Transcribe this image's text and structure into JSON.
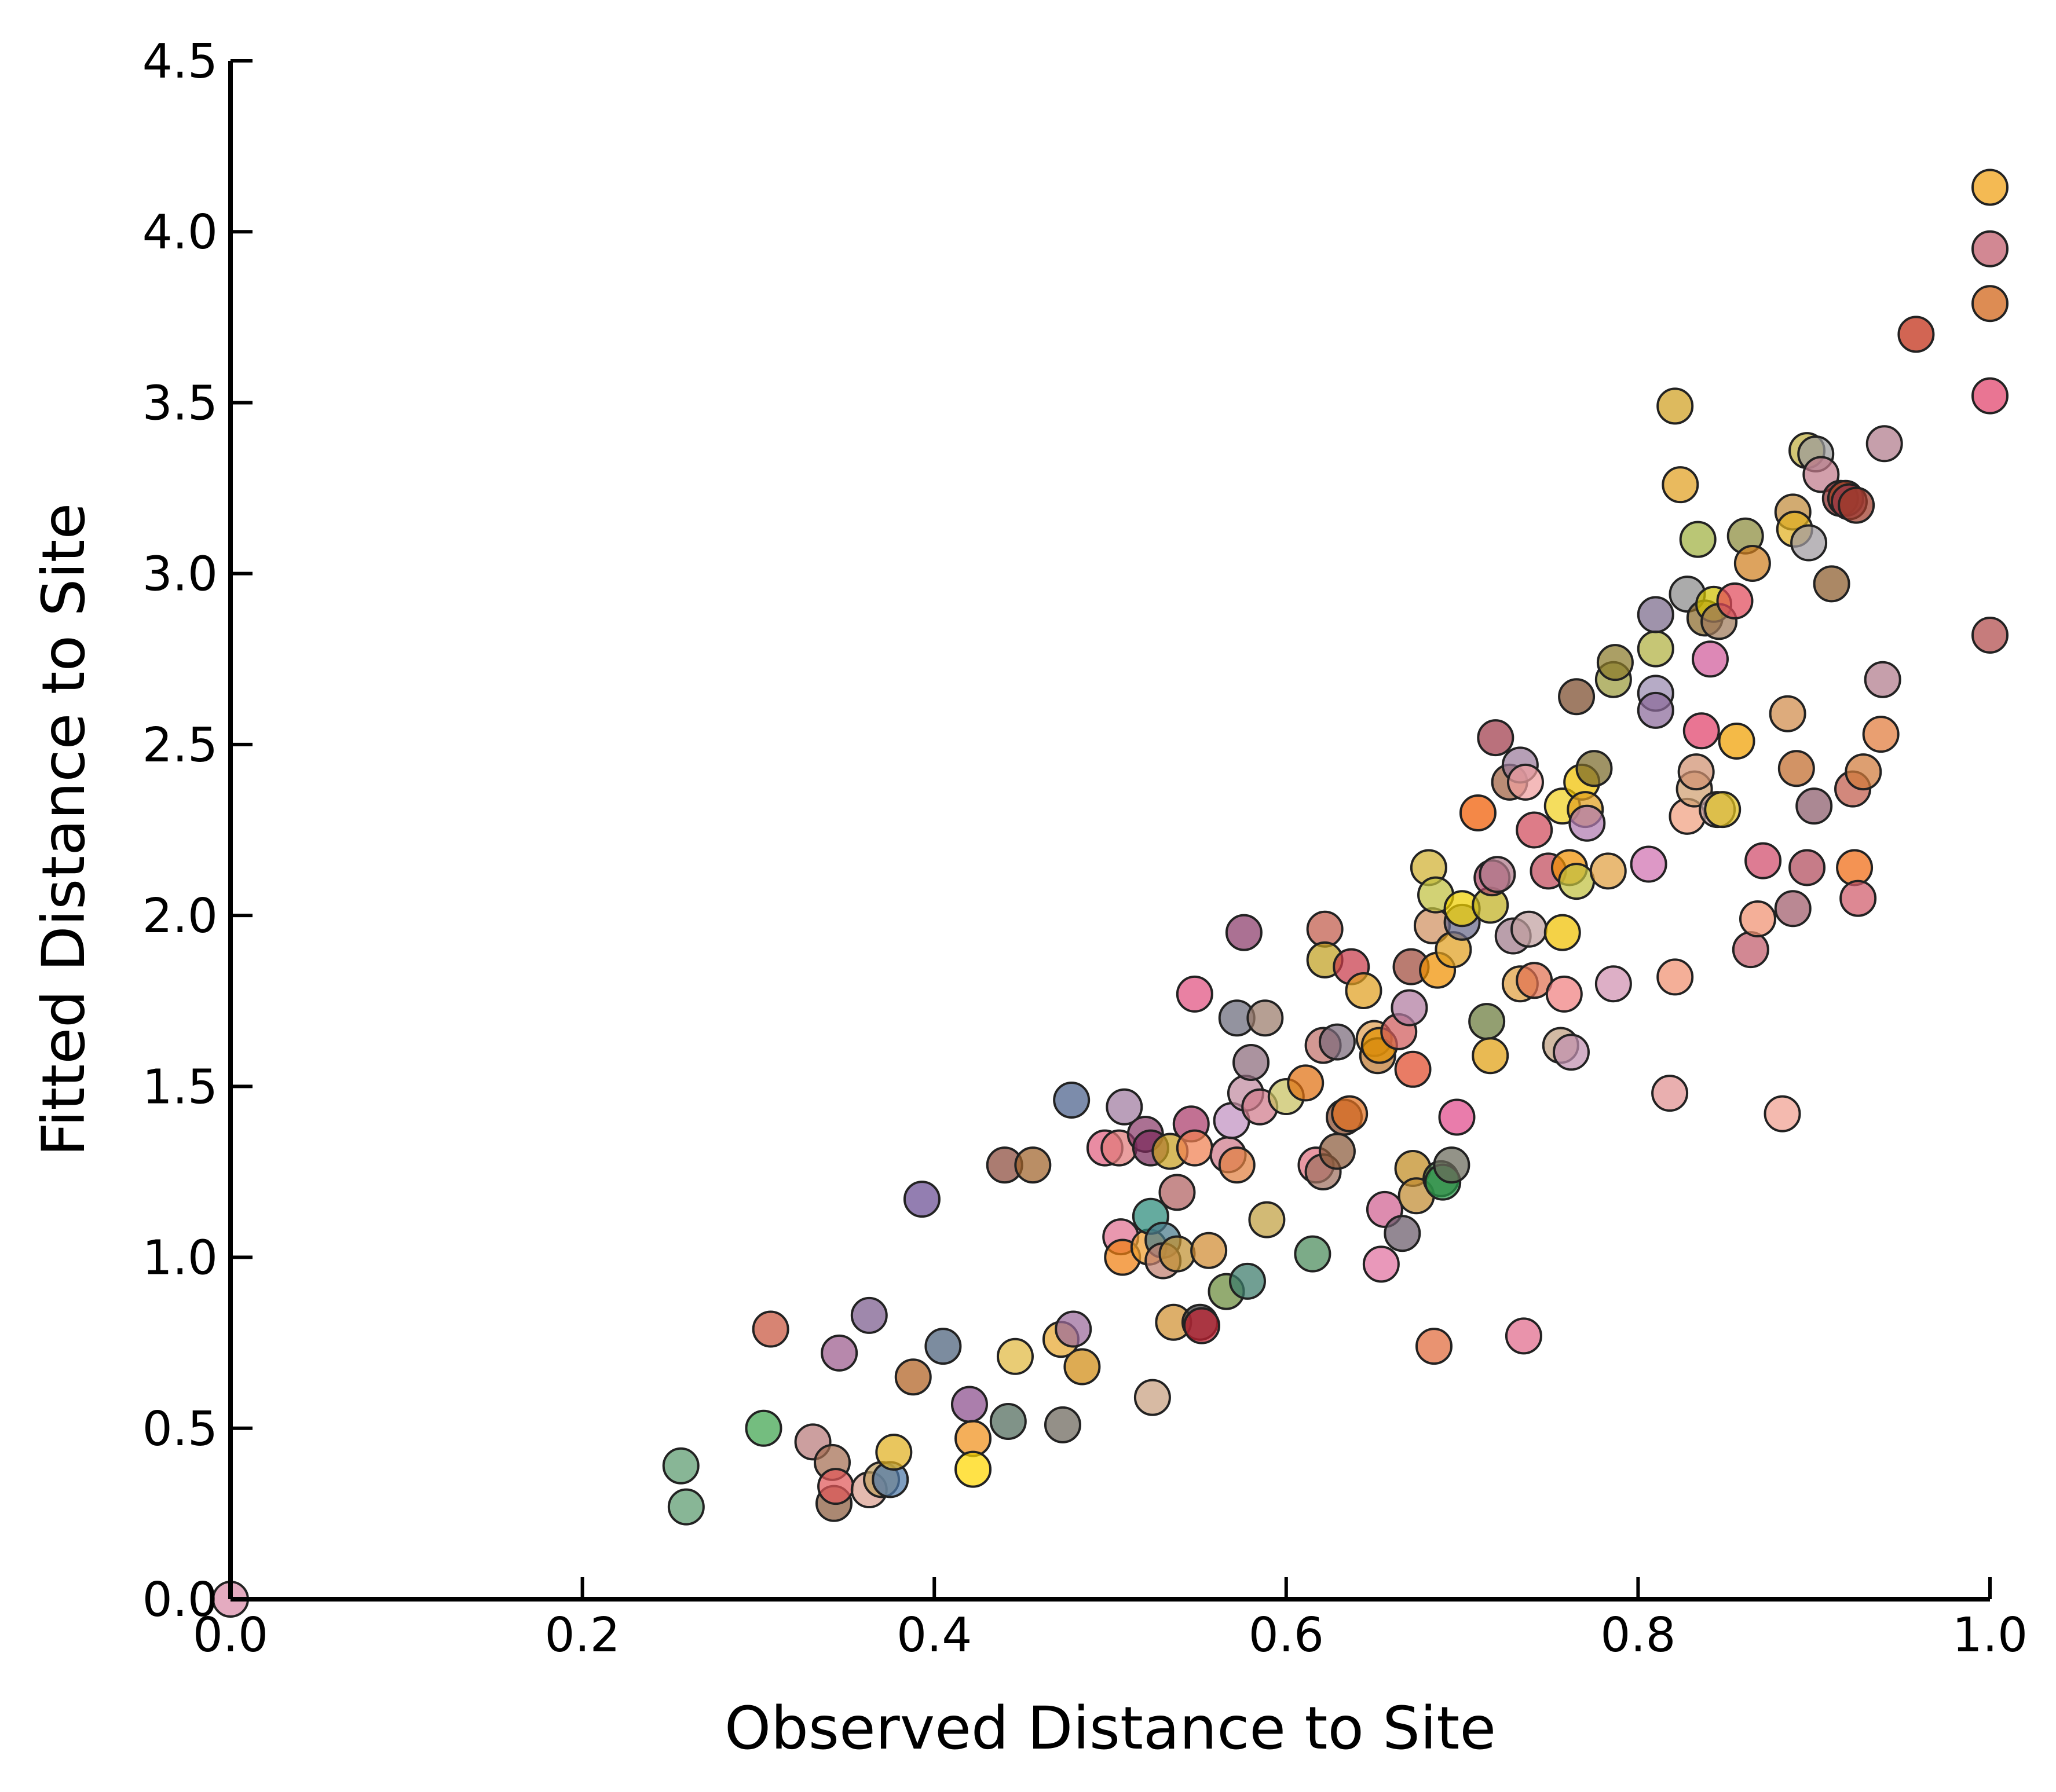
{
  "chart_data": {
    "type": "scatter",
    "title": "",
    "xlabel": "Observed Distance to Site",
    "ylabel": "Fitted Distance to Site",
    "xlim": [
      0.0,
      1.0
    ],
    "ylim": [
      0.0,
      4.5
    ],
    "xticks": [
      "0.0",
      "0.2",
      "0.4",
      "0.6",
      "0.8",
      "1.0"
    ],
    "yticks": [
      "0.0",
      "0.5",
      "1.0",
      "1.5",
      "2.0",
      "2.5",
      "3.0",
      "3.5",
      "4.0",
      "4.5"
    ],
    "grid": false,
    "legend": "none",
    "points": [
      {
        "x": 0.0,
        "y": 0.0,
        "color": "#d98aa8"
      },
      {
        "x": 0.256,
        "y": 0.39,
        "color": "#5a9a6e"
      },
      {
        "x": 0.259,
        "y": 0.27,
        "color": "#5a9a6e"
      },
      {
        "x": 0.303,
        "y": 0.5,
        "color": "#3fa34d"
      },
      {
        "x": 0.307,
        "y": 0.79,
        "color": "#c8553d"
      },
      {
        "x": 0.331,
        "y": 0.46,
        "color": "#b97a7a"
      },
      {
        "x": 0.342,
        "y": 0.4,
        "color": "#a56d52"
      },
      {
        "x": 0.343,
        "y": 0.28,
        "color": "#8a5a3b"
      },
      {
        "x": 0.344,
        "y": 0.33,
        "color": "#e15759"
      },
      {
        "x": 0.346,
        "y": 0.72,
        "color": "#9b5a8c"
      },
      {
        "x": 0.363,
        "y": 0.83,
        "color": "#7a5a8c"
      },
      {
        "x": 0.363,
        "y": 0.32,
        "color": "#d9a090"
      },
      {
        "x": 0.37,
        "y": 0.35,
        "color": "#c0a060"
      },
      {
        "x": 0.375,
        "y": 0.35,
        "color": "#4e79a7"
      },
      {
        "x": 0.377,
        "y": 0.43,
        "color": "#e0b020"
      },
      {
        "x": 0.388,
        "y": 0.65,
        "color": "#b06020"
      },
      {
        "x": 0.393,
        "y": 1.17,
        "color": "#6a4c93"
      },
      {
        "x": 0.405,
        "y": 0.74,
        "color": "#4a5f7a"
      },
      {
        "x": 0.42,
        "y": 0.57,
        "color": "#8a4c8c"
      },
      {
        "x": 0.422,
        "y": 0.47,
        "color": "#f0901a"
      },
      {
        "x": 0.422,
        "y": 0.38,
        "color": "#ffd700"
      },
      {
        "x": 0.44,
        "y": 1.27,
        "color": "#8b4a3a"
      },
      {
        "x": 0.442,
        "y": 0.52,
        "color": "#4f6a5a"
      },
      {
        "x": 0.446,
        "y": 0.71,
        "color": "#e0b840"
      },
      {
        "x": 0.456,
        "y": 1.27,
        "color": "#a0632a"
      },
      {
        "x": 0.472,
        "y": 0.76,
        "color": "#e8a830"
      },
      {
        "x": 0.473,
        "y": 0.51,
        "color": "#6b655a"
      },
      {
        "x": 0.478,
        "y": 1.46,
        "color": "#4a5f8a"
      },
      {
        "x": 0.479,
        "y": 0.79,
        "color": "#9a6a9a"
      },
      {
        "x": 0.484,
        "y": 0.68,
        "color": "#d08a10"
      },
      {
        "x": 0.497,
        "y": 1.32,
        "color": "#e06080"
      },
      {
        "x": 0.505,
        "y": 1.32,
        "color": "#e07a7a"
      },
      {
        "x": 0.506,
        "y": 1.06,
        "color": "#e07090"
      },
      {
        "x": 0.507,
        "y": 1.0,
        "color": "#f08010"
      },
      {
        "x": 0.508,
        "y": 1.44,
        "color": "#a07aa0"
      },
      {
        "x": 0.52,
        "y": 1.36,
        "color": "#8a3a6a"
      },
      {
        "x": 0.522,
        "y": 1.03,
        "color": "#f0a030"
      },
      {
        "x": 0.523,
        "y": 1.32,
        "color": "#7a2a5a"
      },
      {
        "x": 0.523,
        "y": 1.12,
        "color": "#2a8a7a"
      },
      {
        "x": 0.524,
        "y": 0.59,
        "color": "#c8a080"
      },
      {
        "x": 0.53,
        "y": 1.05,
        "color": "#4a7a8a"
      },
      {
        "x": 0.53,
        "y": 0.99,
        "color": "#c08070"
      },
      {
        "x": 0.534,
        "y": 1.31,
        "color": "#c8a020"
      },
      {
        "x": 0.536,
        "y": 0.81,
        "color": "#d09030"
      },
      {
        "x": 0.538,
        "y": 1.01,
        "color": "#c09030"
      },
      {
        "x": 0.538,
        "y": 1.19,
        "color": "#b06060"
      },
      {
        "x": 0.546,
        "y": 1.39,
        "color": "#aa3a6a"
      },
      {
        "x": 0.548,
        "y": 1.32,
        "color": "#f08050"
      },
      {
        "x": 0.548,
        "y": 1.77,
        "color": "#e05080"
      },
      {
        "x": 0.551,
        "y": 0.81,
        "color": "#3a3a3a"
      },
      {
        "x": 0.552,
        "y": 0.8,
        "color": "#c02030"
      },
      {
        "x": 0.556,
        "y": 1.02,
        "color": "#d08a30"
      },
      {
        "x": 0.566,
        "y": 0.9,
        "color": "#6a8a3a"
      },
      {
        "x": 0.567,
        "y": 1.3,
        "color": "#d07a8a"
      },
      {
        "x": 0.569,
        "y": 1.4,
        "color": "#c090c0"
      },
      {
        "x": 0.572,
        "y": 1.7,
        "color": "#6a6a7a"
      },
      {
        "x": 0.572,
        "y": 1.27,
        "color": "#e08040"
      },
      {
        "x": 0.576,
        "y": 1.95,
        "color": "#8a3a6a"
      },
      {
        "x": 0.577,
        "y": 1.48,
        "color": "#c08aa0"
      },
      {
        "x": 0.578,
        "y": 0.93,
        "color": "#3a7a6a"
      },
      {
        "x": 0.58,
        "y": 1.57,
        "color": "#8a6a7a"
      },
      {
        "x": 0.585,
        "y": 1.44,
        "color": "#d07a8a"
      },
      {
        "x": 0.588,
        "y": 1.7,
        "color": "#9a7a6a"
      },
      {
        "x": 0.589,
        "y": 1.11,
        "color": "#c0a040"
      },
      {
        "x": 0.6,
        "y": 1.47,
        "color": "#c8c060"
      },
      {
        "x": 0.611,
        "y": 1.51,
        "color": "#e07010"
      },
      {
        "x": 0.615,
        "y": 1.01,
        "color": "#4a8a5a"
      },
      {
        "x": 0.617,
        "y": 1.27,
        "color": "#e07080"
      },
      {
        "x": 0.621,
        "y": 1.25,
        "color": "#a07060"
      },
      {
        "x": 0.621,
        "y": 1.62,
        "color": "#c0706a"
      },
      {
        "x": 0.622,
        "y": 1.96,
        "color": "#c05a4a"
      },
      {
        "x": 0.622,
        "y": 1.87,
        "color": "#c0a020"
      },
      {
        "x": 0.629,
        "y": 1.63,
        "color": "#7a6a7a"
      },
      {
        "x": 0.629,
        "y": 1.31,
        "color": "#8a5a3a"
      },
      {
        "x": 0.633,
        "y": 1.41,
        "color": "#8a4a2a"
      },
      {
        "x": 0.636,
        "y": 1.42,
        "color": "#e07020"
      },
      {
        "x": 0.637,
        "y": 1.85,
        "color": "#c83a4a"
      },
      {
        "x": 0.644,
        "y": 1.78,
        "color": "#e0a020"
      },
      {
        "x": 0.65,
        "y": 1.64,
        "color": "#e0a050"
      },
      {
        "x": 0.652,
        "y": 1.59,
        "color": "#c07a30"
      },
      {
        "x": 0.653,
        "y": 1.62,
        "color": "#e09000"
      },
      {
        "x": 0.654,
        "y": 0.98,
        "color": "#e070a0"
      },
      {
        "x": 0.656,
        "y": 1.14,
        "color": "#d06090"
      },
      {
        "x": 0.664,
        "y": 1.66,
        "color": "#d05a5a"
      },
      {
        "x": 0.666,
        "y": 1.07,
        "color": "#6a5a6a"
      },
      {
        "x": 0.67,
        "y": 1.73,
        "color": "#b07aa0"
      },
      {
        "x": 0.671,
        "y": 1.85,
        "color": "#a04a3a"
      },
      {
        "x": 0.672,
        "y": 1.55,
        "color": "#e04a2a"
      },
      {
        "x": 0.672,
        "y": 1.26,
        "color": "#c08a20"
      },
      {
        "x": 0.674,
        "y": 1.18,
        "color": "#c08a30"
      },
      {
        "x": 0.681,
        "y": 2.14,
        "color": "#d0b030"
      },
      {
        "x": 0.683,
        "y": 1.97,
        "color": "#d09060"
      },
      {
        "x": 0.684,
        "y": 0.74,
        "color": "#e06a3a"
      },
      {
        "x": 0.685,
        "y": 2.06,
        "color": "#c0c040"
      },
      {
        "x": 0.686,
        "y": 1.84,
        "color": "#f09000"
      },
      {
        "x": 0.688,
        "y": 1.23,
        "color": "#3a6a3a"
      },
      {
        "x": 0.689,
        "y": 1.22,
        "color": "#2a9a4a"
      },
      {
        "x": 0.694,
        "y": 1.27,
        "color": "#6a6a5a"
      },
      {
        "x": 0.695,
        "y": 1.9,
        "color": "#e0a020"
      },
      {
        "x": 0.697,
        "y": 1.41,
        "color": "#e04a8a"
      },
      {
        "x": 0.7,
        "y": 1.98,
        "color": "#6a6a8a"
      },
      {
        "x": 0.7,
        "y": 2.02,
        "color": "#f0d000"
      },
      {
        "x": 0.709,
        "y": 2.3,
        "color": "#f05a00"
      },
      {
        "x": 0.714,
        "y": 1.69,
        "color": "#6a7a3a"
      },
      {
        "x": 0.716,
        "y": 2.03,
        "color": "#c0b020"
      },
      {
        "x": 0.716,
        "y": 1.59,
        "color": "#e0a010"
      },
      {
        "x": 0.717,
        "y": 2.11,
        "color": "#b04a6a"
      },
      {
        "x": 0.719,
        "y": 2.52,
        "color": "#a03a4a"
      },
      {
        "x": 0.72,
        "y": 2.12,
        "color": "#b07a8a"
      },
      {
        "x": 0.727,
        "y": 2.39,
        "color": "#a06040"
      },
      {
        "x": 0.729,
        "y": 1.94,
        "color": "#a07a8a"
      },
      {
        "x": 0.733,
        "y": 2.44,
        "color": "#9a7a9a"
      },
      {
        "x": 0.733,
        "y": 1.8,
        "color": "#e0a040"
      },
      {
        "x": 0.735,
        "y": 0.77,
        "color": "#e06a8a"
      },
      {
        "x": 0.736,
        "y": 2.39,
        "color": "#f0a0a0"
      },
      {
        "x": 0.738,
        "y": 1.96,
        "color": "#c0a0a0"
      },
      {
        "x": 0.741,
        "y": 2.25,
        "color": "#d04a5a"
      },
      {
        "x": 0.741,
        "y": 1.81,
        "color": "#e07050"
      },
      {
        "x": 0.749,
        "y": 2.13,
        "color": "#c04a5a"
      },
      {
        "x": 0.756,
        "y": 1.62,
        "color": "#c0a080"
      },
      {
        "x": 0.757,
        "y": 2.32,
        "color": "#f0d020"
      },
      {
        "x": 0.757,
        "y": 1.95,
        "color": "#f0c000"
      },
      {
        "x": 0.758,
        "y": 1.77,
        "color": "#f08080"
      },
      {
        "x": 0.761,
        "y": 2.14,
        "color": "#f09000"
      },
      {
        "x": 0.762,
        "y": 1.6,
        "color": "#c090b0"
      },
      {
        "x": 0.765,
        "y": 2.64,
        "color": "#7a4a2a"
      },
      {
        "x": 0.765,
        "y": 2.1,
        "color": "#c0c040"
      },
      {
        "x": 0.768,
        "y": 2.39,
        "color": "#f0c000"
      },
      {
        "x": 0.77,
        "y": 2.31,
        "color": "#e0a020"
      },
      {
        "x": 0.771,
        "y": 2.27,
        "color": "#b07ab0"
      },
      {
        "x": 0.775,
        "y": 2.43,
        "color": "#7a6a2a"
      },
      {
        "x": 0.783,
        "y": 2.13,
        "color": "#e0a040"
      },
      {
        "x": 0.786,
        "y": 2.69,
        "color": "#9a9a3a"
      },
      {
        "x": 0.786,
        "y": 1.8,
        "color": "#d090b0"
      },
      {
        "x": 0.787,
        "y": 2.74,
        "color": "#8a7a2a"
      },
      {
        "x": 0.806,
        "y": 2.15,
        "color": "#d070b0"
      },
      {
        "x": 0.81,
        "y": 2.65,
        "color": "#9a8ab0"
      },
      {
        "x": 0.81,
        "y": 2.6,
        "color": "#8a6a9a"
      },
      {
        "x": 0.81,
        "y": 2.78,
        "color": "#b0b040"
      },
      {
        "x": 0.81,
        "y": 2.88,
        "color": "#7a6a8a"
      },
      {
        "x": 0.818,
        "y": 1.48,
        "color": "#e09090"
      },
      {
        "x": 0.821,
        "y": 3.49,
        "color": "#d0a020"
      },
      {
        "x": 0.821,
        "y": 1.82,
        "color": "#f09070"
      },
      {
        "x": 0.824,
        "y": 3.26,
        "color": "#e0a020"
      },
      {
        "x": 0.828,
        "y": 2.94,
        "color": "#8a8a8a"
      },
      {
        "x": 0.828,
        "y": 2.29,
        "color": "#f0a080"
      },
      {
        "x": 0.832,
        "y": 2.37,
        "color": "#d0a070"
      },
      {
        "x": 0.833,
        "y": 2.42,
        "color": "#d09070"
      },
      {
        "x": 0.834,
        "y": 3.1,
        "color": "#a0b040"
      },
      {
        "x": 0.836,
        "y": 2.54,
        "color": "#e0406a"
      },
      {
        "x": 0.838,
        "y": 2.87,
        "color": "#8a6a2a"
      },
      {
        "x": 0.841,
        "y": 2.75,
        "color": "#d05a9a"
      },
      {
        "x": 0.843,
        "y": 2.91,
        "color": "#d0c000"
      },
      {
        "x": 0.845,
        "y": 2.31,
        "color": "#c0a0a0"
      },
      {
        "x": 0.846,
        "y": 2.86,
        "color": "#a07a5a"
      },
      {
        "x": 0.848,
        "y": 2.31,
        "color": "#e0c020"
      },
      {
        "x": 0.855,
        "y": 2.92,
        "color": "#e04a5a"
      },
      {
        "x": 0.856,
        "y": 2.51,
        "color": "#f0a000"
      },
      {
        "x": 0.861,
        "y": 3.11,
        "color": "#8a8a3a"
      },
      {
        "x": 0.864,
        "y": 1.9,
        "color": "#c05a6a"
      },
      {
        "x": 0.865,
        "y": 3.03,
        "color": "#d08020"
      },
      {
        "x": 0.868,
        "y": 1.99,
        "color": "#f09070"
      },
      {
        "x": 0.871,
        "y": 2.16,
        "color": "#d04a6a"
      },
      {
        "x": 0.882,
        "y": 1.42,
        "color": "#f0a090"
      },
      {
        "x": 0.885,
        "y": 2.59,
        "color": "#d08a4a"
      },
      {
        "x": 0.888,
        "y": 2.02,
        "color": "#a05a6a"
      },
      {
        "x": 0.888,
        "y": 3.18,
        "color": "#c08a3a"
      },
      {
        "x": 0.889,
        "y": 3.13,
        "color": "#e0b020"
      },
      {
        "x": 0.89,
        "y": 2.43,
        "color": "#c06a2a"
      },
      {
        "x": 0.896,
        "y": 3.36,
        "color": "#c0b040"
      },
      {
        "x": 0.896,
        "y": 2.14,
        "color": "#b04a5a"
      },
      {
        "x": 0.897,
        "y": 3.09,
        "color": "#a09aa0"
      },
      {
        "x": 0.9,
        "y": 2.32,
        "color": "#8a5a6a"
      },
      {
        "x": 0.901,
        "y": 3.35,
        "color": "#9a9a9a"
      },
      {
        "x": 0.904,
        "y": 3.29,
        "color": "#c07a8a"
      },
      {
        "x": 0.91,
        "y": 2.97,
        "color": "#8a5a2a"
      },
      {
        "x": 0.915,
        "y": 3.22,
        "color": "#8a2a2a"
      },
      {
        "x": 0.918,
        "y": 3.22,
        "color": "#a03a1a"
      },
      {
        "x": 0.92,
        "y": 3.21,
        "color": "#9a3a4a"
      },
      {
        "x": 0.922,
        "y": 2.37,
        "color": "#c05a4a"
      },
      {
        "x": 0.923,
        "y": 2.14,
        "color": "#f06a10"
      },
      {
        "x": 0.924,
        "y": 3.2,
        "color": "#a03a2a"
      },
      {
        "x": 0.925,
        "y": 2.05,
        "color": "#d05a6a"
      },
      {
        "x": 0.928,
        "y": 2.42,
        "color": "#d07a3a"
      },
      {
        "x": 0.938,
        "y": 2.53,
        "color": "#e07a3a"
      },
      {
        "x": 0.939,
        "y": 2.69,
        "color": "#b07a8a"
      },
      {
        "x": 0.94,
        "y": 3.38,
        "color": "#b07a8a"
      },
      {
        "x": 0.958,
        "y": 3.7,
        "color": "#c02a10"
      },
      {
        "x": 1.0,
        "y": 4.13,
        "color": "#f0a010"
      },
      {
        "x": 1.0,
        "y": 3.95,
        "color": "#c05a6a"
      },
      {
        "x": 1.0,
        "y": 3.79,
        "color": "#d06010"
      },
      {
        "x": 1.0,
        "y": 3.52,
        "color": "#e0406a"
      },
      {
        "x": 1.0,
        "y": 2.82,
        "color": "#b04a4a"
      }
    ]
  }
}
